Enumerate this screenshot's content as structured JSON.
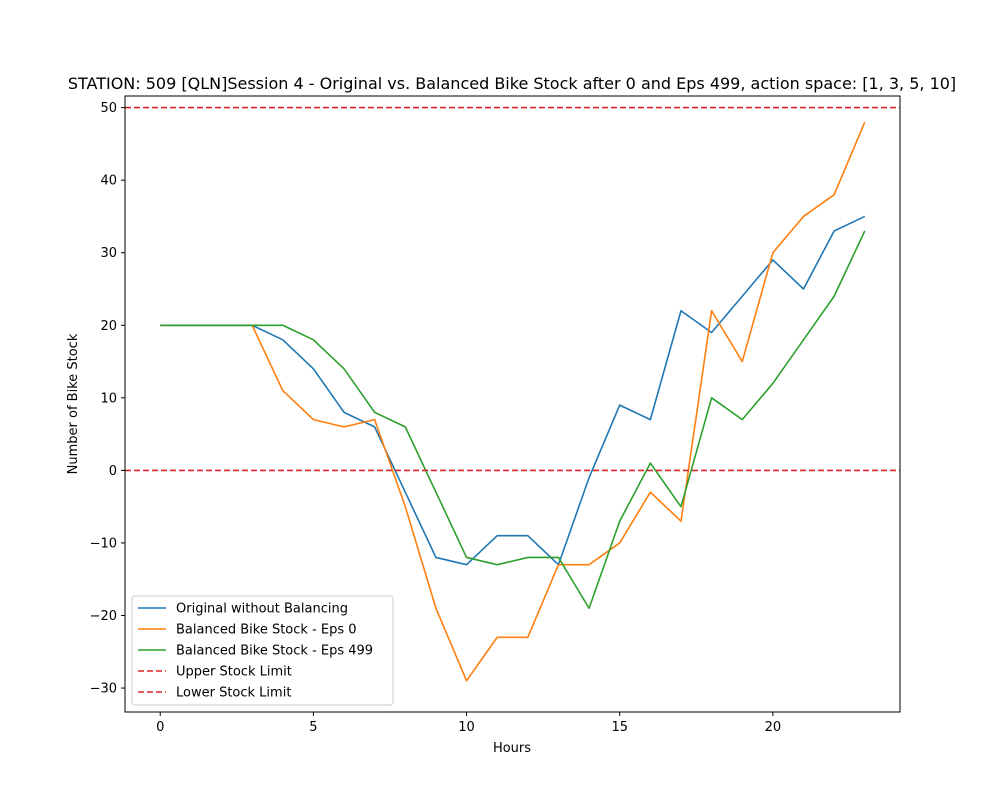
{
  "chart_data": {
    "type": "line",
    "title": "STATION: 509 [QLN]Session 4 - Original vs. Balanced Bike Stock after 0 and Eps 499, action space: [1, 3, 5, 10]",
    "xlabel": "Hours",
    "ylabel": "Number of Bike Stock",
    "xlim": [
      -1.15,
      24.15
    ],
    "ylim": [
      -33.3,
      51.6
    ],
    "xticks": [
      0,
      5,
      10,
      15,
      20
    ],
    "yticks": [
      -30,
      -20,
      -10,
      0,
      10,
      20,
      30,
      40,
      50
    ],
    "grid": false,
    "legend_position": "lower-left",
    "x": [
      0,
      1,
      2,
      3,
      4,
      5,
      6,
      7,
      8,
      9,
      10,
      11,
      12,
      13,
      14,
      15,
      16,
      17,
      18,
      19,
      20,
      21,
      22,
      23
    ],
    "series": [
      {
        "name": "Original without Balancing",
        "color": "#1f77b4",
        "style": "solid",
        "values": [
          20,
          20,
          20,
          20,
          18,
          14,
          8,
          6,
          -3,
          -12,
          -13,
          -9,
          -9,
          -13,
          -1,
          9,
          7,
          22,
          19,
          24,
          29,
          25,
          33,
          35
        ]
      },
      {
        "name": "Balanced Bike Stock - Eps 0",
        "color": "#ff7f0e",
        "style": "solid",
        "values": [
          20,
          20,
          20,
          20,
          11,
          7,
          6,
          7,
          -5,
          -19,
          -29,
          -23,
          -23,
          -13,
          -13,
          -10,
          -3,
          -7,
          22,
          15,
          30,
          35,
          38,
          48
        ]
      },
      {
        "name": "Balanced Bike Stock - Eps 499",
        "color": "#2ca02c",
        "style": "solid",
        "values": [
          20,
          20,
          20,
          20,
          20,
          18,
          14,
          8,
          6,
          -3,
          -12,
          -13,
          -12,
          -12,
          -19,
          -7,
          1,
          -5,
          10,
          7,
          12,
          18,
          24,
          33
        ]
      }
    ],
    "hlines": [
      {
        "name": "Upper Stock Limit",
        "y": 50,
        "color": "#d62728",
        "style": "dashed"
      },
      {
        "name": "Lower Stock Limit",
        "y": 0,
        "color": "#d62728",
        "style": "dashed"
      }
    ]
  }
}
